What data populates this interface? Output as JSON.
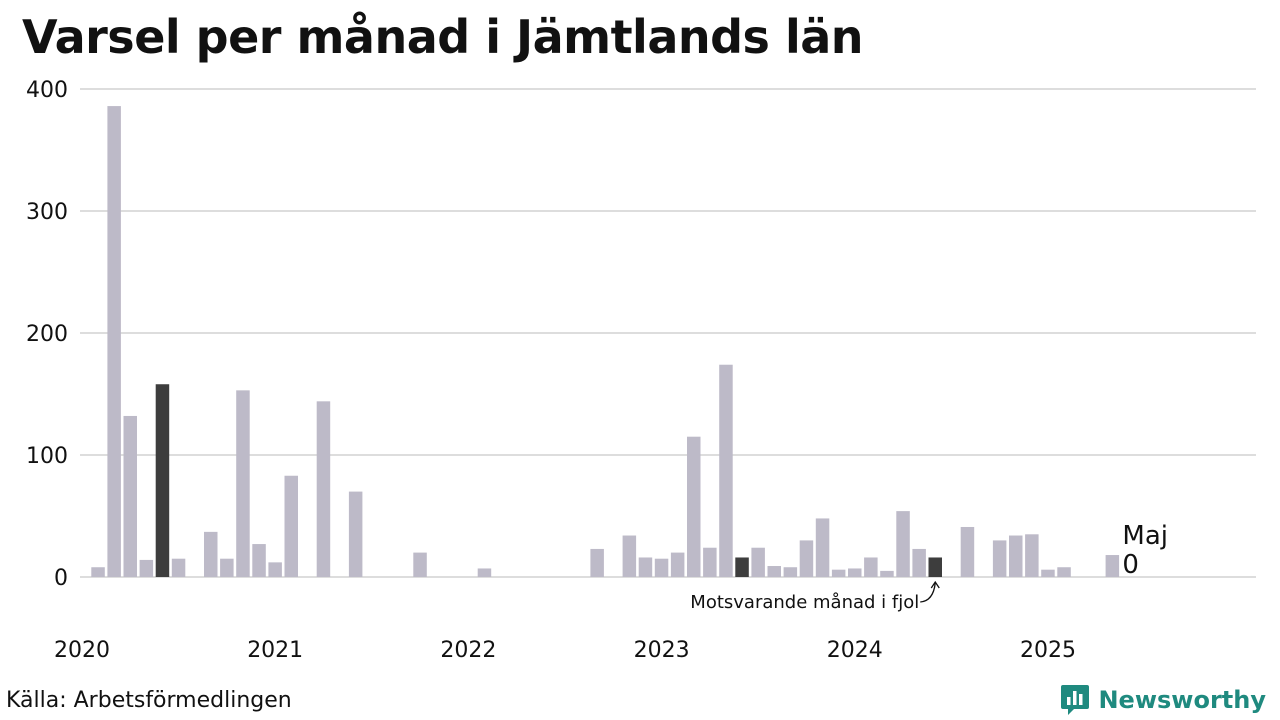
{
  "title": "Varsel per månad i Jämtlands län",
  "source": "Källa: Arbetsförmedlingen",
  "brand": {
    "name": "Newsworthy",
    "icon": "newsworthy-logo-icon",
    "color": "#1f8a7f"
  },
  "colors": {
    "bar": "#bdbac8",
    "highlight": "#3d3d3d",
    "grid": "#dddddd"
  },
  "annotation": {
    "text": "Motsvarande månad i fjol"
  },
  "end_label": {
    "month": "Maj",
    "value": "0"
  },
  "chart_data": {
    "type": "bar",
    "title": "Varsel per månad i Jämtlands län",
    "xlabel": "",
    "ylabel": "",
    "ylim": [
      0,
      400
    ],
    "y_ticks": [
      0,
      100,
      200,
      300,
      400
    ],
    "x_tick_labels": [
      "2020",
      "2021",
      "2022",
      "2023",
      "2024",
      "2025"
    ],
    "grid": true,
    "start": "2020-01",
    "end": "2025-05",
    "highlighted_months": [
      "2020-05",
      "2023-05",
      "2024-05"
    ],
    "series": [
      {
        "months": [
          "2020-01",
          "2020-02",
          "2020-03",
          "2020-04",
          "2020-05",
          "2020-06",
          "2020-07",
          "2020-08",
          "2020-09",
          "2020-10",
          "2020-11",
          "2020-12",
          "2021-01",
          "2021-02",
          "2021-03",
          "2021-04",
          "2021-05",
          "2021-06",
          "2021-07",
          "2021-08",
          "2021-09",
          "2021-10",
          "2021-11",
          "2021-12",
          "2022-01",
          "2022-02",
          "2022-03",
          "2022-04",
          "2022-05",
          "2022-06",
          "2022-07",
          "2022-08",
          "2022-09",
          "2022-10",
          "2022-11",
          "2022-12",
          "2023-01",
          "2023-02",
          "2023-03",
          "2023-04",
          "2023-05",
          "2023-06",
          "2023-07",
          "2023-08",
          "2023-09",
          "2023-10",
          "2023-11",
          "2023-12",
          "2024-01",
          "2024-02",
          "2024-03",
          "2024-04",
          "2024-05",
          "2024-06",
          "2024-07",
          "2024-08",
          "2024-09",
          "2024-10",
          "2024-11",
          "2024-12",
          "2025-01",
          "2025-02",
          "2025-03",
          "2025-04",
          "2025-05"
        ],
        "values": [
          8,
          386,
          132,
          14,
          158,
          15,
          0,
          37,
          15,
          153,
          27,
          12,
          83,
          0,
          144,
          0,
          70,
          0,
          0,
          0,
          20,
          0,
          0,
          0,
          7,
          0,
          0,
          0,
          0,
          0,
          0,
          23,
          0,
          34,
          16,
          15,
          20,
          115,
          24,
          174,
          16,
          24,
          9,
          8,
          30,
          48,
          6,
          7,
          16,
          5,
          54,
          23,
          16,
          0,
          41,
          0,
          30,
          34,
          35,
          6,
          8,
          0,
          0,
          18,
          0
        ]
      }
    ]
  }
}
